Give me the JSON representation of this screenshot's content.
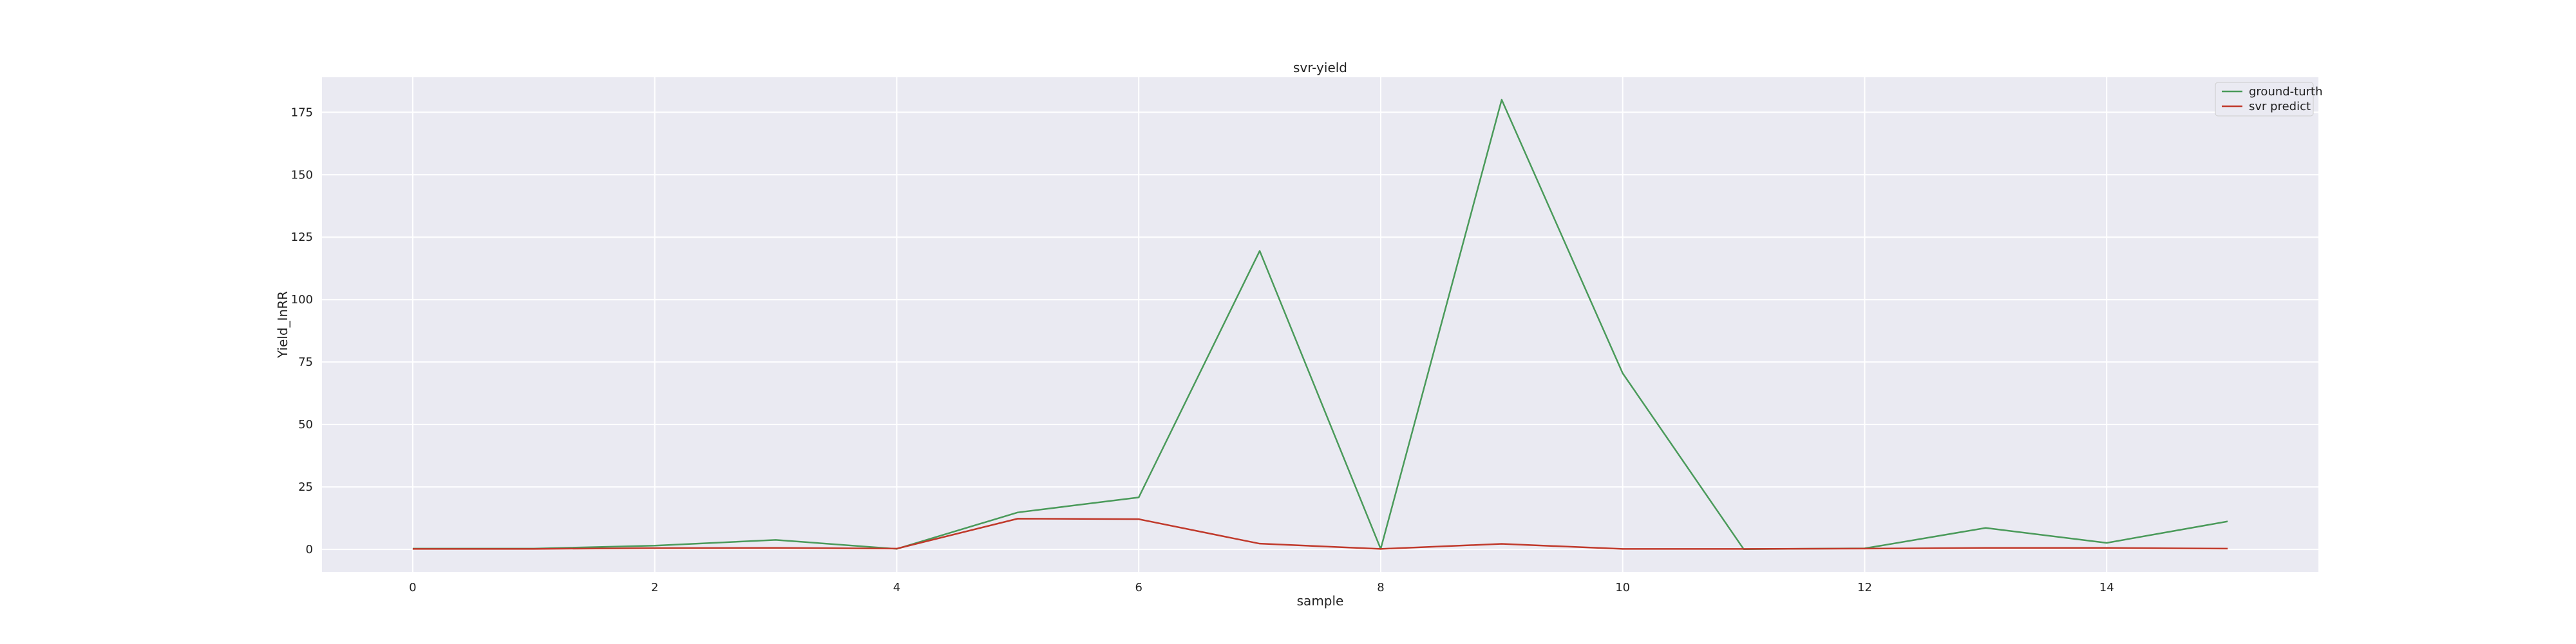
{
  "chart_data": {
    "type": "line",
    "title": "svr-yield",
    "xlabel": "sample",
    "ylabel": "Yield_InRR",
    "xlim": [
      -0.75,
      15.75
    ],
    "ylim": [
      -9,
      189
    ],
    "xticks": [
      0,
      2,
      4,
      6,
      8,
      10,
      12,
      14
    ],
    "yticks": [
      0,
      25,
      50,
      75,
      100,
      125,
      150,
      175
    ],
    "grid": true,
    "legend_position": "top-right",
    "x": [
      0,
      1,
      2,
      3,
      4,
      5,
      6,
      7,
      8,
      9,
      10,
      11,
      12,
      13,
      14,
      15
    ],
    "series": [
      {
        "name": "ground-turth",
        "color": "#4a9a5a",
        "values": [
          0.3,
          0.3,
          1.5,
          3.8,
          0.2,
          14.8,
          20.8,
          119.5,
          0.2,
          180,
          70.5,
          0.1,
          0.4,
          8.6,
          2.6,
          11.2
        ]
      },
      {
        "name": "svr predict",
        "color": "#c0392b",
        "values": [
          0.2,
          0.2,
          0.5,
          0.6,
          0.3,
          12.3,
          12.1,
          2.3,
          0.2,
          2.2,
          0.2,
          0.2,
          0.3,
          0.6,
          0.6,
          0.3
        ]
      }
    ]
  }
}
